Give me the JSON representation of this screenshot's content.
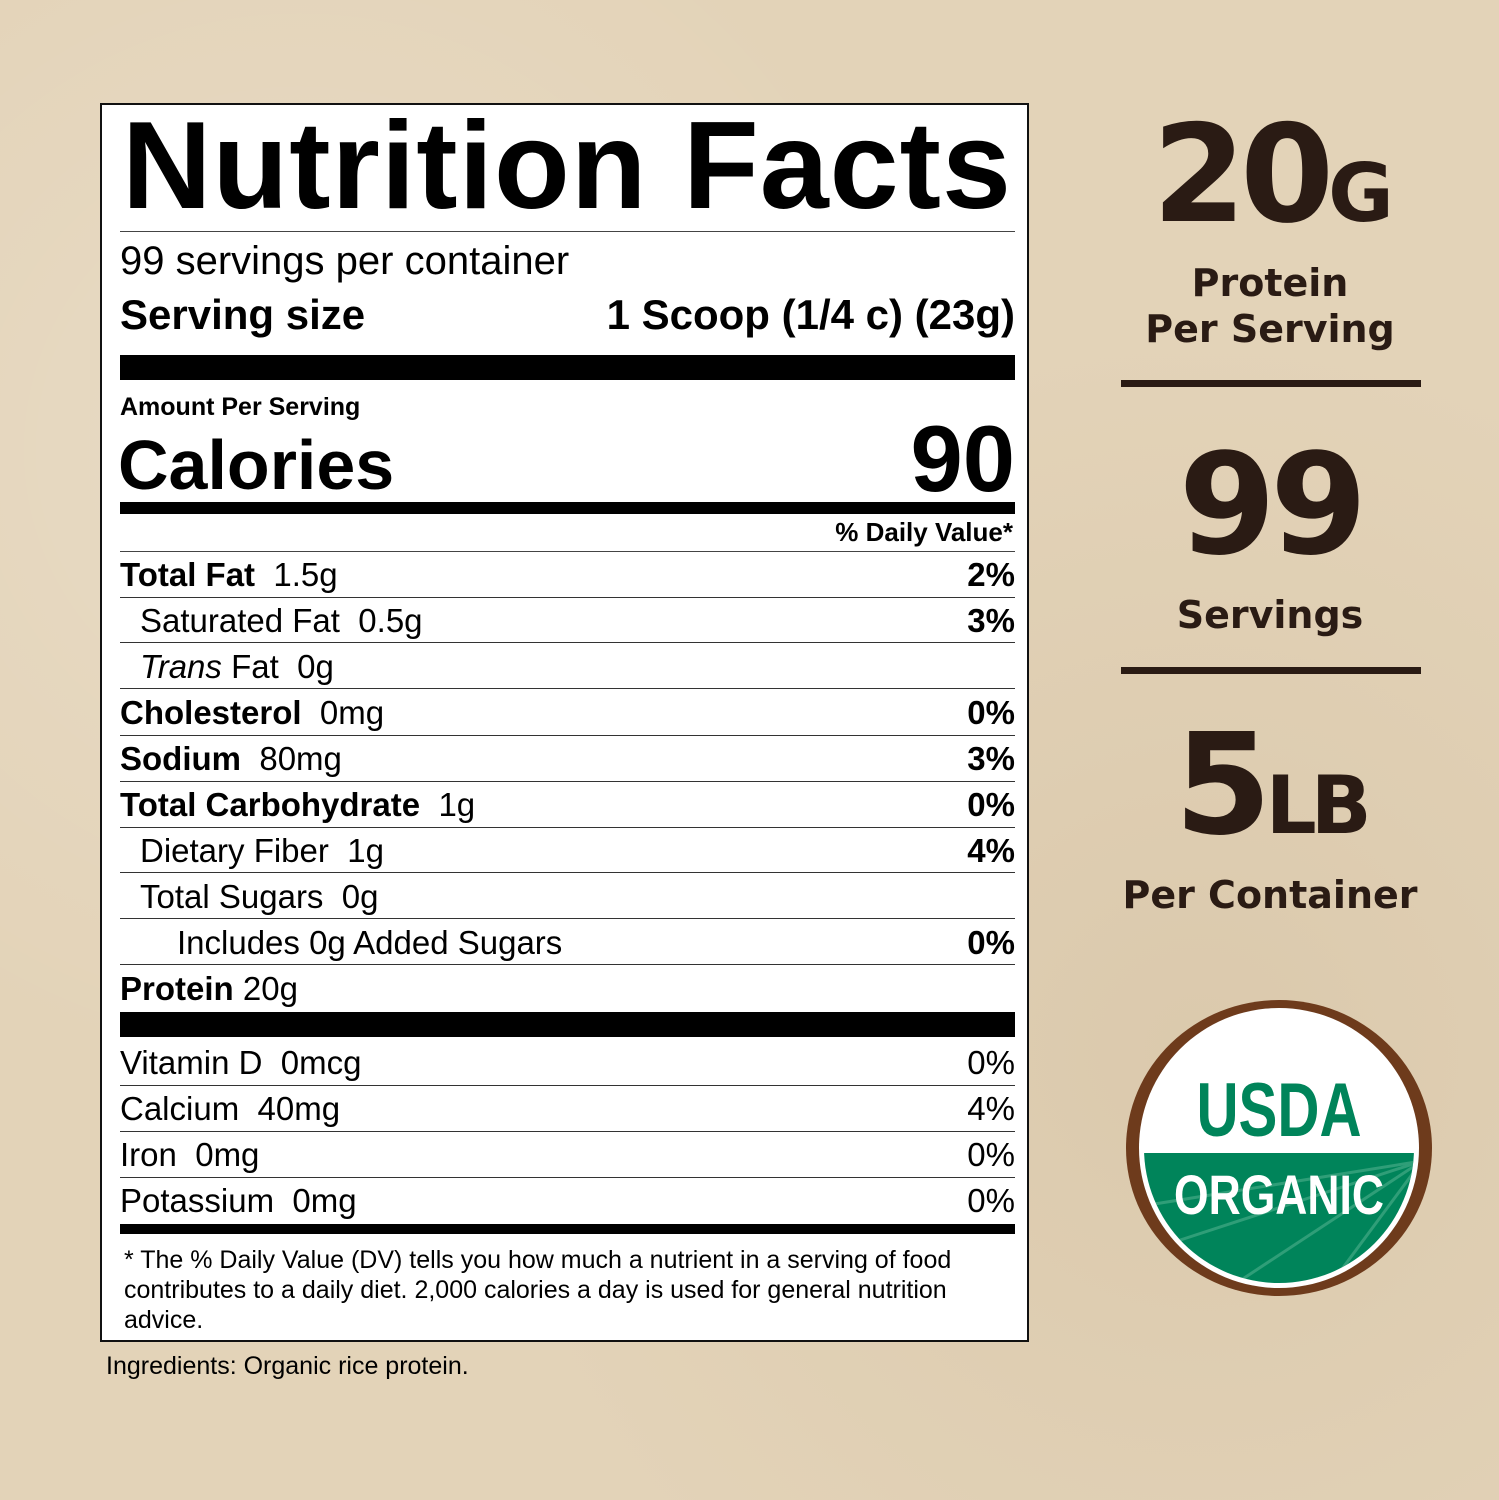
{
  "label": {
    "title": "Nutrition Facts",
    "servings_per_container": "99 servings per container",
    "serving_size_label": "Serving size",
    "serving_size_value": "1 Scoop (1/4 c) (23g)",
    "amount_per_serving": "Amount Per Serving",
    "calories_label": "Calories",
    "calories_value": "90",
    "daily_value_header": "% Daily Value*",
    "nutrients": [
      {
        "name": "Total Fat",
        "amount": "1.5g",
        "dv": "2%"
      },
      {
        "name": "Saturated Fat",
        "amount": "0.5g",
        "dv": "3%"
      },
      {
        "name_italic": "Trans",
        "name": "Fat",
        "amount": "0g",
        "dv": ""
      },
      {
        "name": "Cholesterol",
        "amount": "0mg",
        "dv": "0%"
      },
      {
        "name": "Sodium",
        "amount": "80mg",
        "dv": "3%"
      },
      {
        "name": "Total Carbohydrate",
        "amount": "1g",
        "dv": "0%"
      },
      {
        "name": "Dietary Fiber",
        "amount": "1g",
        "dv": "4%"
      },
      {
        "name": "Total Sugars",
        "amount": "0g",
        "dv": ""
      },
      {
        "name": "Includes 0g Added Sugars",
        "amount": "",
        "dv": "0%"
      },
      {
        "name": "Protein",
        "amount": "20g",
        "dv": ""
      }
    ],
    "vitamins": [
      {
        "name": "Vitamin D",
        "amount": "0mcg",
        "dv": "0%"
      },
      {
        "name": "Calcium",
        "amount": "40mg",
        "dv": "4%"
      },
      {
        "name": "Iron",
        "amount": "0mg",
        "dv": "0%"
      },
      {
        "name": "Potassium",
        "amount": "0mg",
        "dv": "0%"
      }
    ],
    "footnote": "* The % Daily Value (DV) tells you how much a nutrient in a serving of food contributes to a daily diet. 2,000 calories a day is used for general nutrition advice."
  },
  "ingredients": "Ingredients: Organic rice protein.",
  "highlights": {
    "protein_value": "20",
    "protein_unit": "G",
    "protein_caption_1": "Protein",
    "protein_caption_2": "Per Serving",
    "servings_value": "99",
    "servings_caption": "Servings",
    "weight_value": "5",
    "weight_unit": "LB",
    "weight_caption": "Per Container"
  },
  "seal": {
    "top_text": "USDA",
    "bottom_text": "ORGANIC",
    "green": "#00845a",
    "brown": "#6e3b1c"
  },
  "colors": {
    "background": "#e3d3b8",
    "text_brown": "#2a1b14"
  }
}
